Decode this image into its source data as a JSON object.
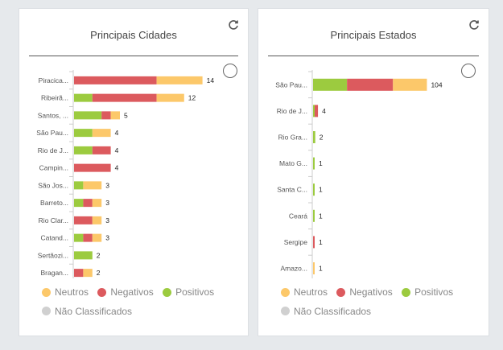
{
  "colors": {
    "neutros": "#fcc86a",
    "negativos": "#dc5a5e",
    "positivos": "#9ccb3f",
    "nao_classificados": "#d0d0d0"
  },
  "legend": {
    "neutros": "Neutros",
    "negativos": "Negativos",
    "positivos": "Positivos",
    "nao_classificados": "Não Classificados"
  },
  "panels": [
    {
      "title": "Principais Cidades"
    },
    {
      "title": "Principais Estados"
    }
  ],
  "chart_data": [
    {
      "type": "bar",
      "orientation": "horizontal",
      "stacked": true,
      "title": "Principais Cidades",
      "categories": [
        "Piracica...",
        "Ribeirã...",
        "Santos, ...",
        "São Pau...",
        "Rio de J...",
        "Campin...",
        "São Jos...",
        "Barreto...",
        "Rio Clar...",
        "Catand...",
        "Sertãozi...",
        "Bragan..."
      ],
      "series": [
        {
          "name": "Positivos",
          "values": [
            0,
            2,
            3,
            2,
            2,
            0,
            1,
            1,
            0,
            1,
            2,
            0
          ]
        },
        {
          "name": "Negativos",
          "values": [
            9,
            7,
            1,
            0,
            2,
            4,
            0,
            1,
            2,
            1,
            0,
            1
          ]
        },
        {
          "name": "Neutros",
          "values": [
            5,
            3,
            1,
            2,
            0,
            0,
            2,
            1,
            1,
            1,
            0,
            1
          ]
        }
      ],
      "totals": [
        14,
        12,
        5,
        4,
        4,
        4,
        3,
        3,
        3,
        3,
        2,
        2
      ]
    },
    {
      "type": "bar",
      "orientation": "horizontal",
      "stacked": true,
      "title": "Principais Estados",
      "categories": [
        "São Pau...",
        "Rio de J...",
        "Rio Gra...",
        "Mato G...",
        "Santa C...",
        "Ceará",
        "Sergipe",
        "Amazo..."
      ],
      "series": [
        {
          "name": "Positivos",
          "values": [
            31,
            1,
            2,
            1,
            1,
            1,
            0,
            0
          ]
        },
        {
          "name": "Negativos",
          "values": [
            42,
            3,
            0,
            0,
            0,
            0,
            1,
            0
          ]
        },
        {
          "name": "Neutros",
          "values": [
            31,
            0,
            0,
            0,
            0,
            0,
            0,
            1
          ]
        }
      ],
      "totals": [
        104,
        4,
        2,
        1,
        1,
        1,
        1,
        1
      ]
    }
  ]
}
